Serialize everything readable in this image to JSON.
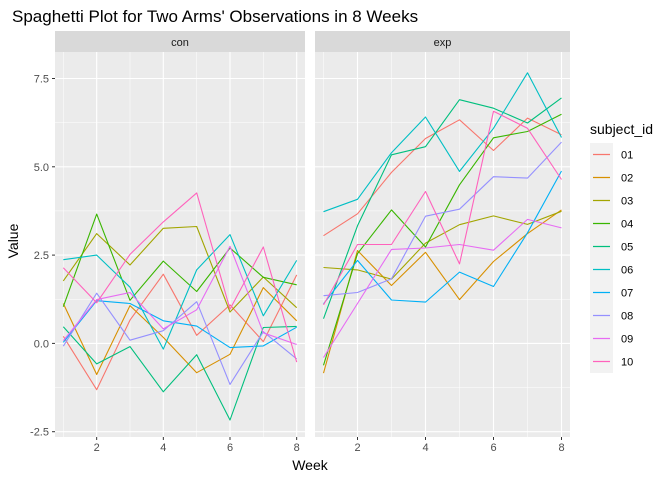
{
  "chart_data": {
    "type": "line",
    "title": "Spaghetti Plot for Two Arms' Observations in 8 Weeks",
    "xlabel": "Week",
    "ylabel": "Value",
    "x": [
      1,
      2,
      3,
      4,
      5,
      6,
      7,
      8
    ],
    "xticks": [
      "2",
      "4",
      "6",
      "8"
    ],
    "yticks": [
      "-2.5",
      "0.0",
      "2.5",
      "5.0",
      "7.5"
    ],
    "xlim": [
      0.75,
      8.25
    ],
    "ylim": [
      -2.65,
      8.25
    ],
    "grid": true,
    "legend_placement": "right",
    "legend_title": "subject_id",
    "panels": [
      {
        "name": "con",
        "series": [
          {
            "name": "01",
            "values": [
              0.2,
              -1.31,
              0.66,
              1.96,
              0.23,
              1.09,
              0.05,
              1.94
            ]
          },
          {
            "name": "02",
            "values": [
              1.13,
              -0.88,
              1.07,
              0.17,
              -0.83,
              -0.31,
              1.58,
              0.64
            ]
          },
          {
            "name": "03",
            "values": [
              1.77,
              3.11,
              2.22,
              3.26,
              3.31,
              0.89,
              1.88,
              1.01
            ]
          },
          {
            "name": "04",
            "values": [
              1.04,
              3.66,
              1.22,
              2.33,
              1.47,
              2.7,
              1.87,
              1.66
            ]
          },
          {
            "name": "05",
            "values": [
              0.47,
              -0.58,
              -0.09,
              -1.37,
              -0.32,
              -2.17,
              0.45,
              0.48
            ]
          },
          {
            "name": "06",
            "values": [
              2.37,
              2.5,
              1.59,
              -0.16,
              2.08,
              3.08,
              0.78,
              2.35
            ]
          },
          {
            "name": "07",
            "values": [
              0.03,
              1.21,
              1.13,
              0.64,
              0.49,
              -0.12,
              -0.07,
              0.46
            ]
          },
          {
            "name": "08",
            "values": [
              -0.08,
              1.42,
              0.09,
              0.36,
              1.18,
              -1.16,
              0.33,
              -0.44
            ]
          },
          {
            "name": "09",
            "values": [
              0.08,
              1.24,
              1.44,
              0.41,
              0.95,
              2.75,
              0.3,
              -0.03
            ]
          },
          {
            "name": "10",
            "values": [
              2.14,
              1.15,
              2.52,
              3.44,
              4.26,
              0.97,
              2.73,
              -0.53
            ]
          }
        ]
      },
      {
        "name": "exp",
        "series": [
          {
            "name": "01",
            "values": [
              3.05,
              3.67,
              4.84,
              5.8,
              6.33,
              5.46,
              6.38,
              5.91
            ]
          },
          {
            "name": "02",
            "values": [
              -0.84,
              2.63,
              1.64,
              2.58,
              1.24,
              2.32,
              3.11,
              3.78
            ]
          },
          {
            "name": "03",
            "values": [
              2.15,
              2.08,
              1.82,
              2.84,
              3.36,
              3.61,
              3.37,
              3.74
            ]
          },
          {
            "name": "04",
            "values": [
              -0.62,
              2.54,
              3.78,
              2.73,
              4.49,
              5.82,
              6.0,
              6.49
            ]
          },
          {
            "name": "05",
            "values": [
              0.7,
              3.33,
              5.34,
              5.57,
              6.9,
              6.66,
              6.24,
              6.95
            ]
          },
          {
            "name": "06",
            "values": [
              3.73,
              4.08,
              5.4,
              6.41,
              4.87,
              6.09,
              7.66,
              5.83
            ]
          },
          {
            "name": "07",
            "values": [
              1.12,
              2.35,
              1.23,
              1.17,
              2.02,
              1.61,
              3.13,
              4.88
            ]
          },
          {
            "name": "08",
            "values": [
              1.35,
              1.44,
              1.83,
              3.6,
              3.8,
              4.72,
              4.68,
              5.7
            ]
          },
          {
            "name": "09",
            "values": [
              -0.4,
              1.13,
              2.66,
              2.7,
              2.8,
              2.64,
              3.51,
              3.27
            ]
          },
          {
            "name": "10",
            "values": [
              1.09,
              2.8,
              2.8,
              4.3,
              2.25,
              6.57,
              6.09,
              4.64
            ]
          }
        ]
      }
    ],
    "colors": {
      "01": "#F8766D",
      "02": "#D89000",
      "03": "#A3A500",
      "04": "#39B600",
      "05": "#00BF7D",
      "06": "#00BFC4",
      "07": "#00B0F6",
      "08": "#9590FF",
      "09": "#E76BF3",
      "10": "#FF62BC"
    }
  }
}
